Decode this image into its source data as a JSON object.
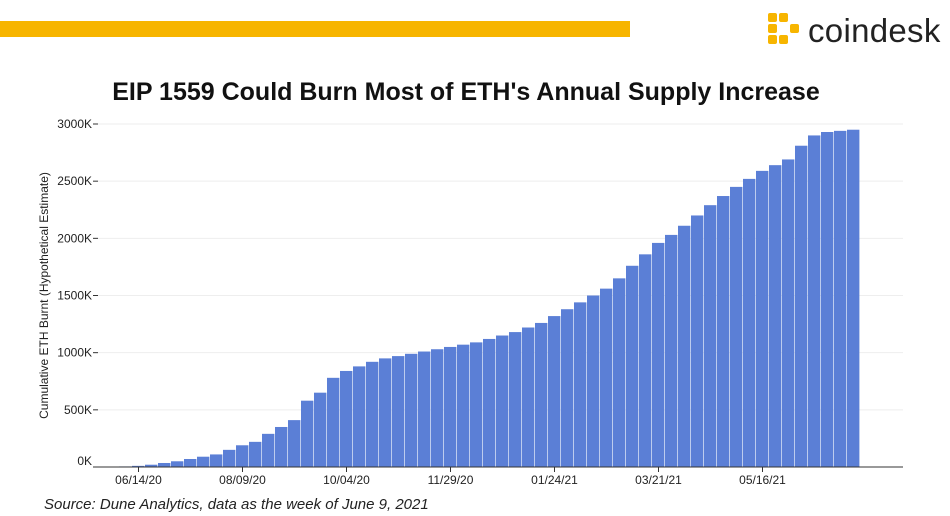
{
  "brand": {
    "name": "coindesk",
    "accent_color": "#f7b500",
    "logo_icon": "coindesk-logo-icon"
  },
  "source": "Source: Dune Analytics, data as the week of June 9, 2021",
  "chart_data": {
    "type": "bar",
    "title": "EIP 1559 Could Burn Most of ETH's Annual Supply Increase",
    "xlabel": "",
    "ylabel": "Cumulative ETH Burnt (Hypothetical Estimate)",
    "ylim": [
      0,
      3000
    ],
    "y_ticks": [
      0,
      500,
      1000,
      1500,
      2000,
      2500,
      3000
    ],
    "y_tick_labels": [
      "0K",
      "500K",
      "1000K",
      "1500K",
      "2000K",
      "2500K",
      "3000K"
    ],
    "x_tick_labels": [
      "06/14/20",
      "08/09/20",
      "10/04/20",
      "11/29/20",
      "01/24/21",
      "03/21/21",
      "05/16/21"
    ],
    "x_tick_indices": [
      1,
      9,
      17,
      25,
      33,
      41,
      49
    ],
    "grid": true,
    "bar_color": "#5b7fd6",
    "values": [
      5,
      10,
      20,
      35,
      50,
      70,
      90,
      110,
      150,
      190,
      220,
      290,
      350,
      410,
      580,
      650,
      780,
      840,
      880,
      920,
      950,
      970,
      990,
      1010,
      1030,
      1050,
      1070,
      1090,
      1120,
      1150,
      1180,
      1220,
      1260,
      1320,
      1380,
      1440,
      1500,
      1560,
      1650,
      1760,
      1860,
      1960,
      2030,
      2110,
      2200,
      2290,
      2370,
      2450,
      2520,
      2590,
      2640,
      2690,
      2810,
      2900,
      2930,
      2940,
      2950
    ]
  }
}
